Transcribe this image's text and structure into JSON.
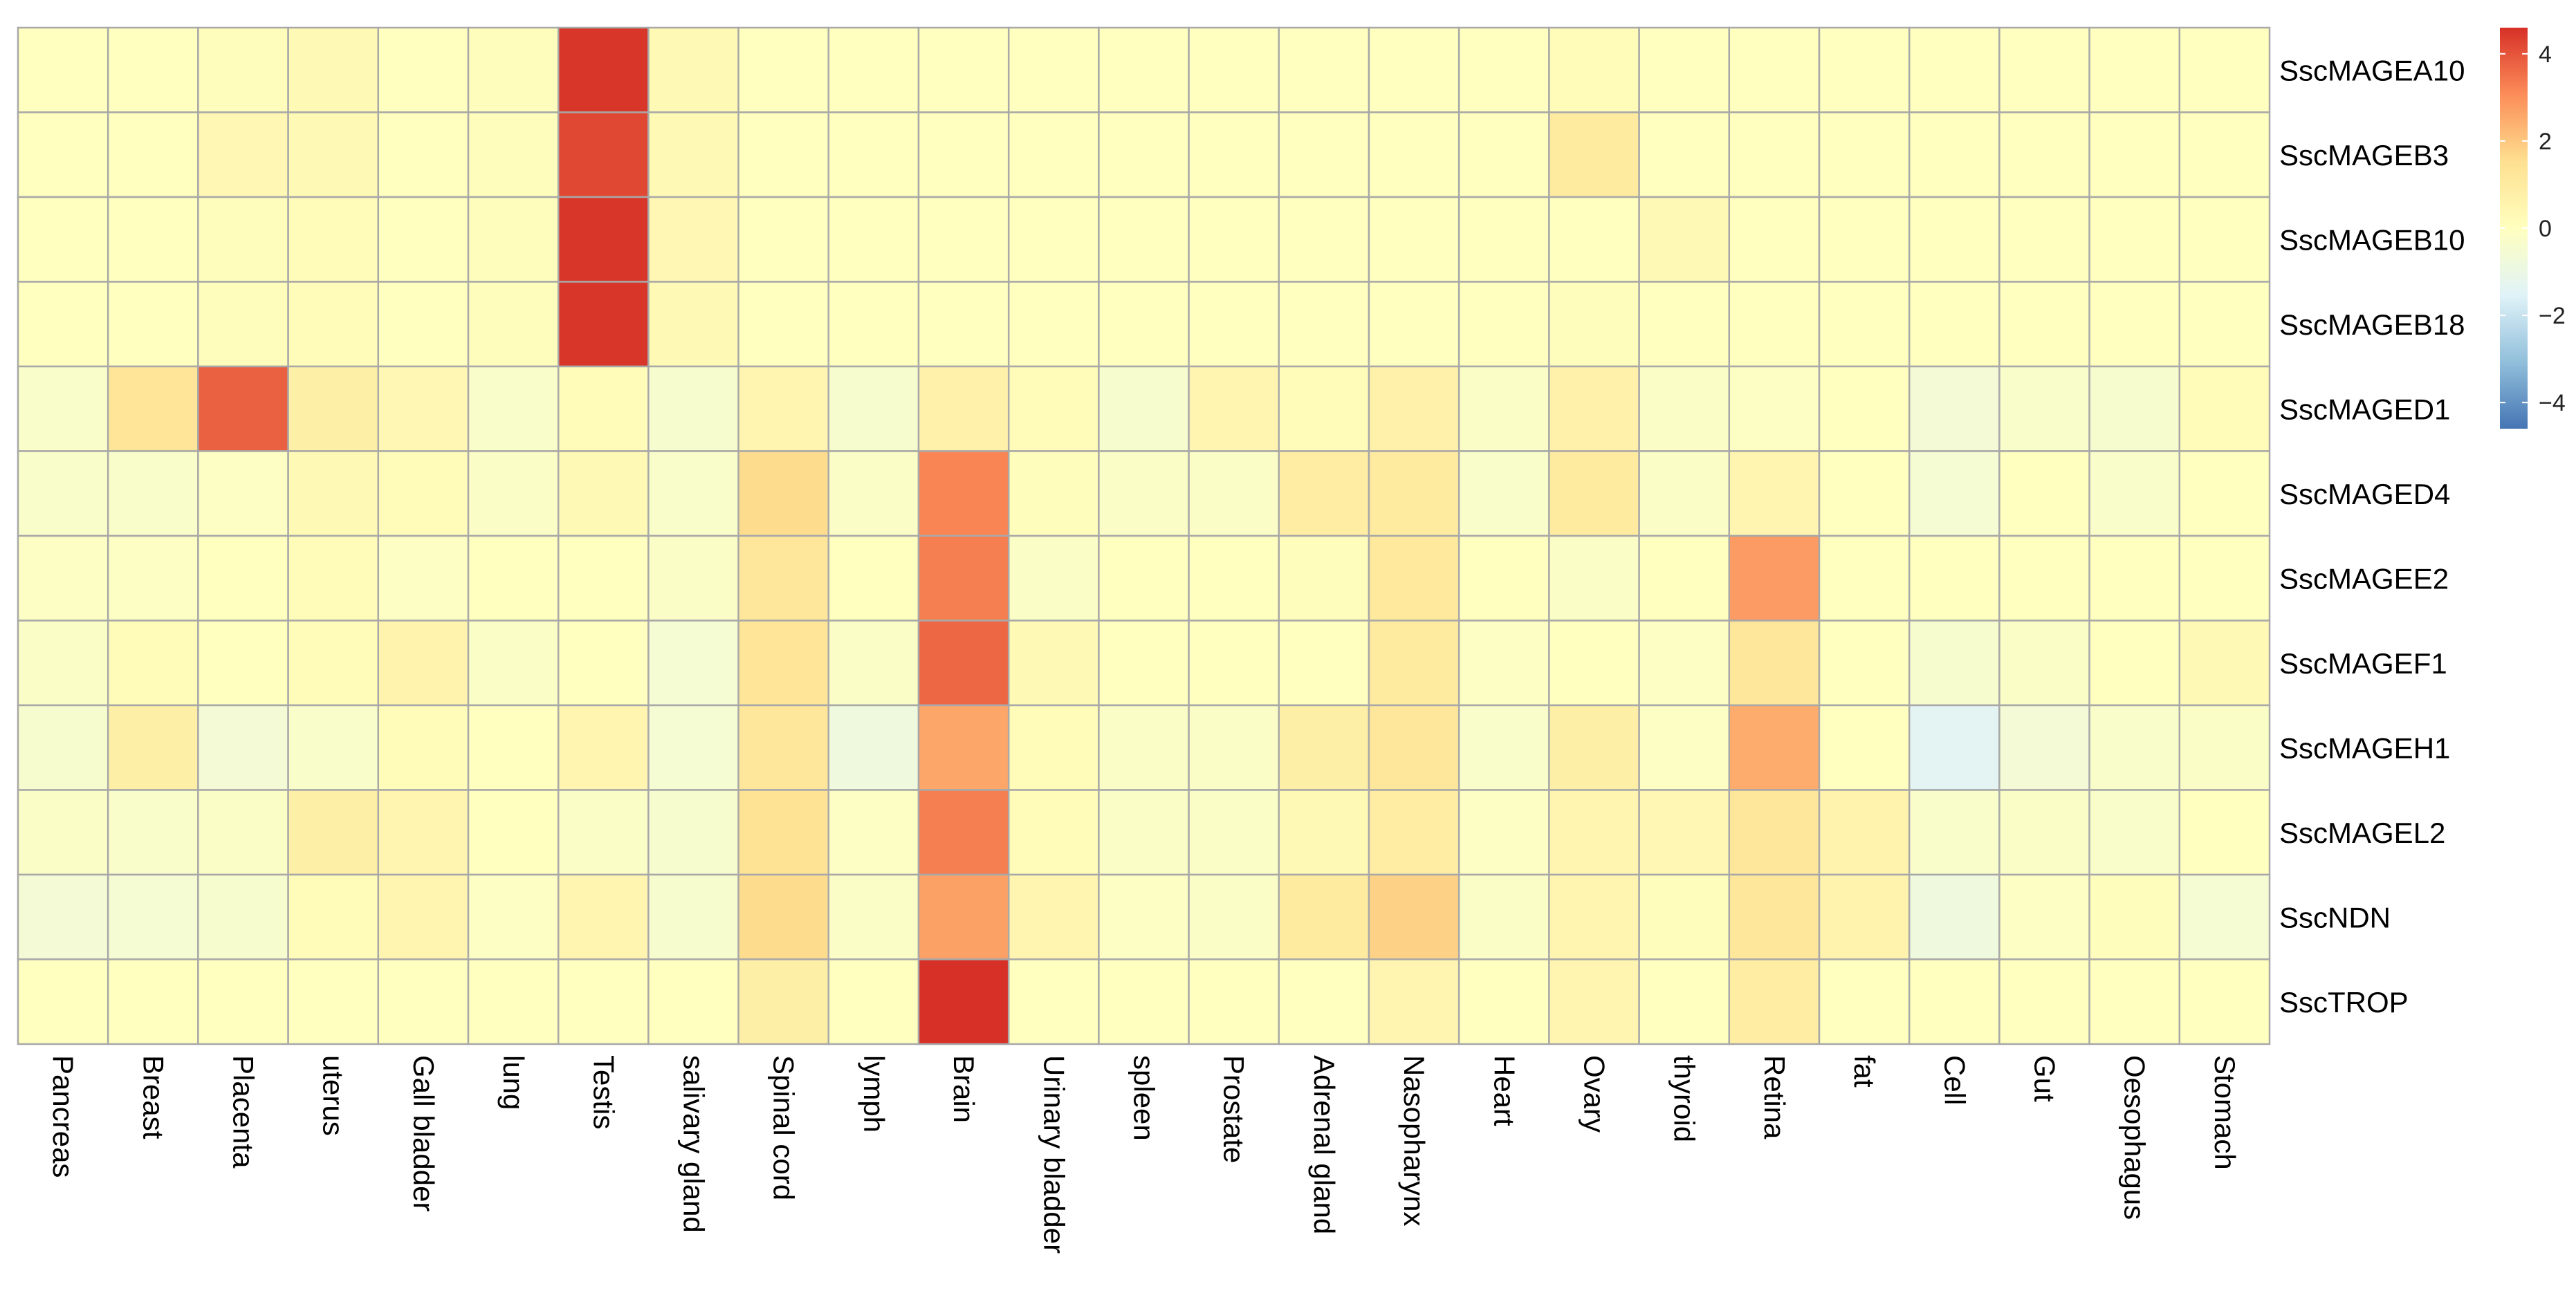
{
  "chart_data": {
    "type": "heatmap",
    "title": "",
    "xlabel": "",
    "ylabel": "",
    "rows": [
      "SscMAGEA10",
      "SscMAGEB3",
      "SscMAGEB10",
      "SscMAGEB18",
      "SscMAGED1",
      "SscMAGED4",
      "SscMAGEE2",
      "SscMAGEF1",
      "SscMAGEH1",
      "SscMAGEL2",
      "SscNDN",
      "SscTROP"
    ],
    "columns": [
      "Pancreas",
      "Breast",
      "Placenta",
      "uterus",
      "Gall bladder",
      "lung",
      "Testis",
      "salivary gland",
      "Spinal cord",
      "lymph",
      "Brain",
      "Urinary bladder",
      "spleen",
      "Prostate",
      "Adrenal gland",
      "Nasopharynx",
      "Heart",
      "Ovary",
      "thyroid",
      "Retina",
      "fat",
      "Cell",
      "Gut",
      "Oesophagus",
      "Stomach"
    ],
    "values": [
      [
        0,
        0,
        0.1,
        0.3,
        0,
        0.1,
        4.5,
        0.3,
        0,
        0,
        0,
        0,
        0,
        0,
        0,
        0,
        0,
        0.2,
        0,
        0,
        0,
        0,
        0,
        0,
        0
      ],
      [
        0,
        0,
        0.4,
        0.3,
        0,
        0.1,
        4.2,
        0.3,
        0,
        0,
        0,
        0,
        0,
        0,
        0,
        0,
        0,
        1.0,
        0,
        0,
        0,
        0,
        0,
        0,
        0
      ],
      [
        0,
        0,
        0.1,
        0.2,
        0,
        0.1,
        4.5,
        0.4,
        0,
        0,
        0,
        0,
        0,
        0,
        0,
        0,
        0,
        0,
        0.3,
        0,
        0,
        0,
        0,
        0,
        0
      ],
      [
        0,
        0,
        0.1,
        0.2,
        0,
        0.1,
        4.5,
        0.3,
        0,
        0,
        0,
        0,
        0,
        0,
        0,
        0,
        0,
        0.1,
        0,
        0,
        0,
        0,
        0,
        0,
        0
      ],
      [
        -0.3,
        1.3,
        3.8,
        0.8,
        0.4,
        -0.3,
        0.2,
        -0.4,
        0.5,
        -0.4,
        0.7,
        0.2,
        -0.4,
        0.5,
        0.2,
        0.7,
        -0.2,
        0.7,
        -0.2,
        -0.1,
        0,
        -0.6,
        -0.3,
        -0.4,
        0.2
      ],
      [
        -0.3,
        -0.3,
        -0.1,
        0.3,
        0.2,
        -0.2,
        0.3,
        -0.3,
        1.6,
        -0.2,
        3.2,
        0.1,
        -0.2,
        -0.2,
        0.9,
        1.0,
        -0.3,
        1.0,
        -0.2,
        0.5,
        0,
        -0.5,
        0,
        -0.3,
        0
      ],
      [
        -0.1,
        -0.1,
        0,
        0.2,
        -0.1,
        0,
        0,
        -0.2,
        1.2,
        0,
        3.3,
        -0.2,
        0,
        0,
        0.1,
        1.1,
        0,
        -0.2,
        0,
        2.8,
        0,
        0,
        0,
        0,
        0
      ],
      [
        -0.2,
        0.2,
        0,
        0.2,
        0.6,
        -0.2,
        0,
        -0.5,
        1.3,
        -0.2,
        3.7,
        0.3,
        0,
        0,
        0,
        1.0,
        -0.1,
        0,
        -0.1,
        1.2,
        0,
        -0.4,
        -0.2,
        0,
        0.3
      ],
      [
        -0.4,
        0.8,
        -0.6,
        -0.3,
        0.2,
        0,
        0.5,
        -0.5,
        1.2,
        -0.8,
        2.6,
        0.2,
        -0.2,
        -0.2,
        0.8,
        1.2,
        -0.3,
        0.8,
        -0.1,
        2.5,
        0,
        -1.4,
        -0.6,
        -0.3,
        -0.2
      ],
      [
        -0.2,
        -0.3,
        -0.2,
        0.8,
        0.5,
        0,
        -0.2,
        -0.4,
        1.4,
        -0.1,
        3.3,
        0.2,
        -0.2,
        -0.2,
        0.3,
        0.9,
        -0.1,
        0.5,
        0.4,
        1.2,
        0.6,
        -0.3,
        -0.2,
        -0.3,
        0
      ],
      [
        -0.6,
        -0.5,
        -0.4,
        0.2,
        0.5,
        -0.1,
        0.5,
        -0.4,
        1.6,
        -0.2,
        2.7,
        0.5,
        -0.1,
        -0.2,
        1.0,
        1.8,
        -0.2,
        0.5,
        0.1,
        1.2,
        0.6,
        -0.8,
        -0.1,
        0.1,
        -0.5
      ],
      [
        0,
        0,
        0,
        0,
        0,
        0,
        0,
        0,
        0.8,
        0,
        4.6,
        0,
        0,
        0,
        0,
        0.5,
        0,
        0.5,
        0,
        0.9,
        0,
        0,
        0,
        0,
        0
      ]
    ],
    "legend": {
      "position": "right",
      "ticks": [
        4,
        2,
        0,
        -2,
        -4
      ],
      "range": [
        -4.6,
        4.6
      ],
      "colors": [
        "#4575b4",
        "#91bfdb",
        "#e0f3f8",
        "#ffffbf",
        "#fee090",
        "#fc8d59",
        "#d73027"
      ]
    },
    "grid": true
  }
}
